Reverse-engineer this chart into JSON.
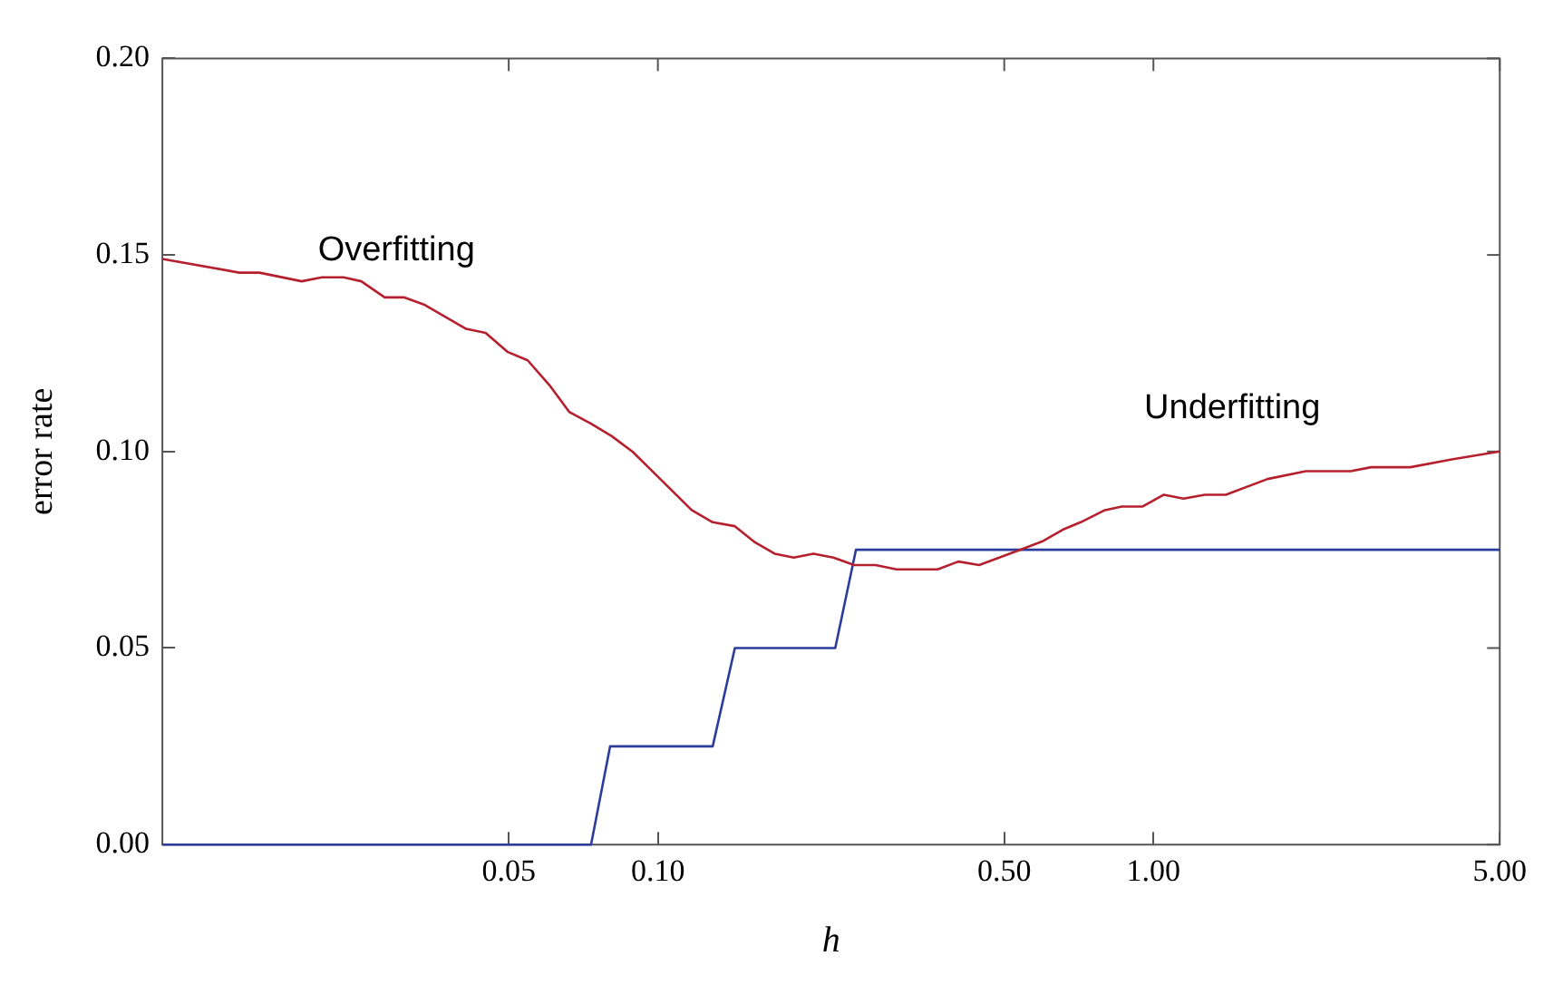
{
  "chart_data": {
    "type": "line",
    "xlabel": "h",
    "ylabel": "error rate",
    "log": "x",
    "grid": false,
    "legend": false,
    "marker": "none",
    "line_style": "solid",
    "xlim": [
      0.01,
      5
    ],
    "ylim": [
      0,
      0.2
    ],
    "xticks": [
      {
        "value": 0.05,
        "label": "0.05"
      },
      {
        "value": 0.1,
        "label": "0.10"
      },
      {
        "value": 0.5,
        "label": "0.50"
      },
      {
        "value": 1,
        "label": "1.00"
      },
      {
        "value": 5,
        "label": "5.00"
      }
    ],
    "yticks": [
      {
        "value": 0,
        "label": "0.00"
      },
      {
        "value": 0.05,
        "label": "0.05"
      },
      {
        "value": 0.1,
        "label": "0.10"
      },
      {
        "value": 0.15,
        "label": "0.15"
      },
      {
        "value": 0.2,
        "label": "0.20"
      }
    ],
    "series": [
      {
        "color": "#b5202e",
        "x": [
          0.01,
          0.0143,
          0.0157,
          0.0191,
          0.021,
          0.0232,
          0.0252,
          0.0281,
          0.0308,
          0.0337,
          0.041,
          0.0449,
          0.0498,
          0.0546,
          0.0604,
          0.0662,
          0.0733,
          0.0807,
          0.089,
          0.117,
          0.129,
          0.143,
          0.157,
          0.172,
          0.188,
          0.206,
          0.226,
          0.249,
          0.275,
          0.303,
          0.367,
          0.404,
          0.445,
          0.541,
          0.596,
          0.656,
          0.713,
          0.795,
          0.863,
          0.951,
          1.05,
          1.15,
          1.27,
          1.4,
          1.7,
          2.03,
          2.5,
          2.75,
          3.3,
          4,
          5
        ],
        "values": [
          0.149,
          0.1455,
          0.1455,
          0.1433,
          0.1443,
          0.1443,
          0.1433,
          0.1392,
          0.1392,
          0.1374,
          0.1312,
          0.1302,
          0.1253,
          0.1232,
          0.1169,
          0.1101,
          0.1071,
          0.1039,
          0.0999,
          0.0851,
          0.082,
          0.081,
          0.0769,
          0.074,
          0.073,
          0.074,
          0.073,
          0.0711,
          0.0711,
          0.07,
          0.07,
          0.072,
          0.0711,
          0.0751,
          0.0771,
          0.0801,
          0.082,
          0.085,
          0.086,
          0.086,
          0.089,
          0.088,
          0.089,
          0.089,
          0.093,
          0.095,
          0.095,
          0.096,
          0.096,
          0.098,
          0.1
        ]
      },
      {
        "color": "#2a3c9c",
        "x": [
          0.01,
          0.0733,
          0.0801,
          0.129,
          0.143,
          0.228,
          0.251,
          5
        ],
        "values": [
          0,
          0,
          0.025,
          0.025,
          0.05,
          0.05,
          0.075,
          0.075
        ]
      }
    ],
    "annotations": [
      "Overfitting",
      "Underfitting"
    ]
  }
}
